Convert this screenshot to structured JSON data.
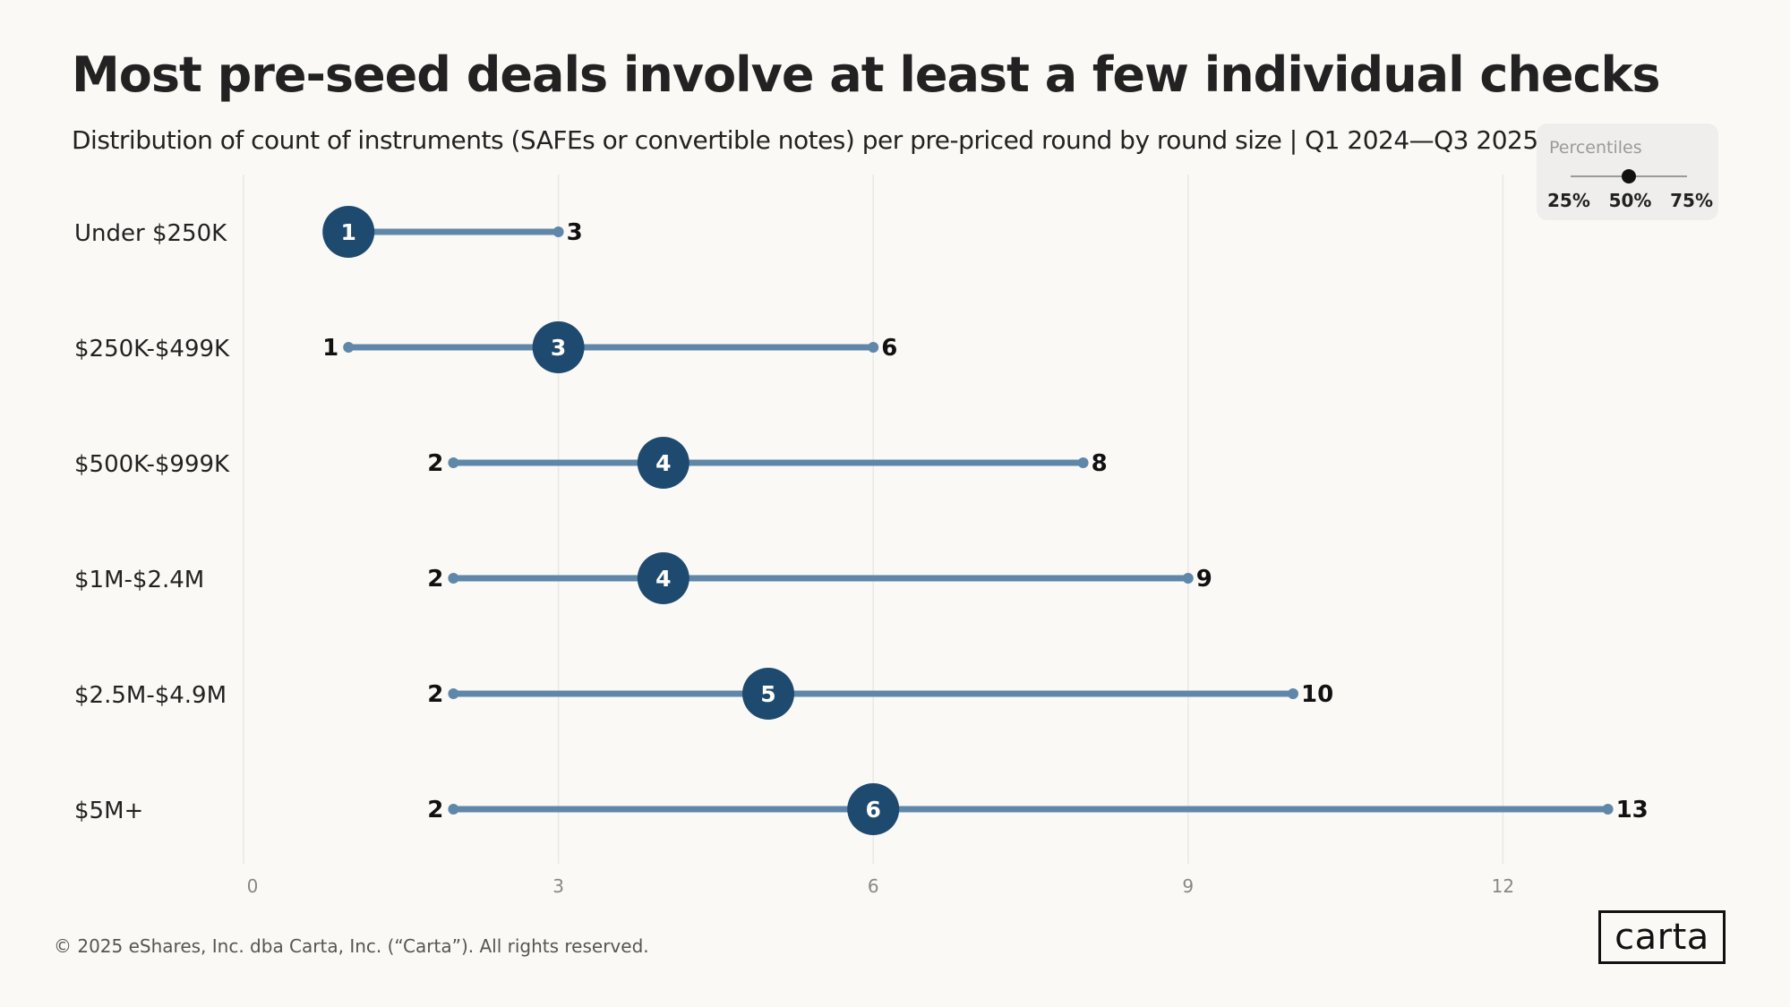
{
  "header": {
    "title": "Most pre-seed deals involve at least a few individual checks",
    "subtitle": "Distribution of count of instruments (SAFEs or convertible notes) per pre-priced round by round size |  Q1 2024—Q3 2025"
  },
  "legend": {
    "title": "Percentiles",
    "labels": [
      "25%",
      "50%",
      "75%"
    ]
  },
  "chart_data": {
    "type": "dumbbell",
    "categories": [
      "Under $250K",
      "$250K-$499K",
      "$500K-$999K",
      "$1M-$2.4M",
      "$2.5M-$4.9M",
      "$5M+"
    ],
    "series": [
      {
        "name": "25%",
        "values": [
          1,
          1,
          2,
          2,
          2,
          2
        ]
      },
      {
        "name": "50%",
        "values": [
          1,
          3,
          4,
          4,
          5,
          6
        ]
      },
      {
        "name": "75%",
        "values": [
          3,
          6,
          8,
          9,
          10,
          13
        ]
      }
    ],
    "xlim": [
      0,
      13
    ],
    "xticks": [
      0,
      3,
      6,
      9,
      12
    ],
    "grid": true,
    "legend_position": "top-right",
    "colors": {
      "line": "#5f87aa",
      "median": "#1f4a70",
      "grid": "#ebe8e3"
    }
  },
  "footer": {
    "copyright": "© 2025 eShares, Inc. dba Carta, Inc. (“Carta”). All rights reserved.",
    "logo": "carta"
  }
}
